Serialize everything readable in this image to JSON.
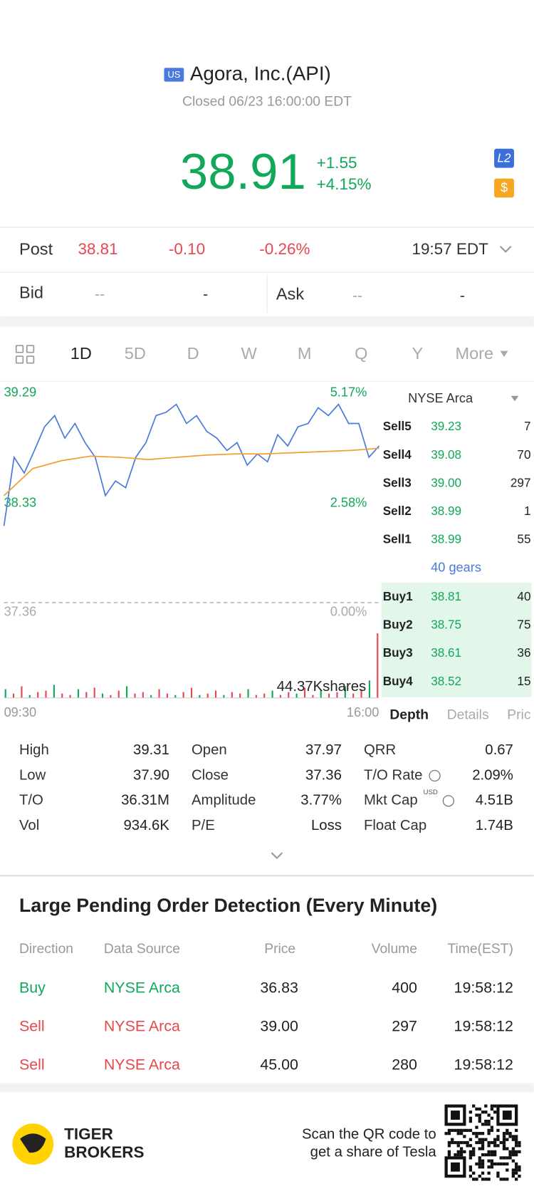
{
  "header": {
    "market_badge": "US",
    "name": "Agora, Inc.(API)",
    "status": "Closed 06/23 16:00:00 EDT",
    "price": "38.91",
    "change": "+1.55",
    "change_pct": "+4.15%",
    "badges": [
      "L2",
      "$"
    ]
  },
  "post": {
    "label": "Post",
    "price": "38.81",
    "change": "-0.10",
    "change_pct": "-0.26%",
    "time": "19:57 EDT"
  },
  "bid_ask": {
    "bid_label": "Bid",
    "bid": "--",
    "bid_size": "-",
    "ask_label": "Ask",
    "ask": "--",
    "ask_size": "-"
  },
  "tabs": [
    "1D",
    "5D",
    "D",
    "W",
    "M",
    "Q",
    "Y",
    "More"
  ],
  "chart_data": {
    "type": "line",
    "ylim": [
      37.36,
      39.29
    ],
    "yticks": [
      39.29,
      38.33,
      37.36
    ],
    "pct_labels": [
      "5.17%",
      "2.58%",
      "0.00%"
    ],
    "x_labels": [
      "09:30",
      "16:00"
    ],
    "series": [
      {
        "name": "Price",
        "color": "#4a7bdc",
        "values": [
          38.04,
          38.65,
          38.51,
          38.71,
          38.92,
          39.02,
          38.82,
          38.95,
          38.78,
          38.65,
          38.31,
          38.44,
          38.38,
          38.65,
          38.78,
          39.02,
          39.05,
          39.12,
          38.95,
          39.02,
          38.88,
          38.82,
          38.71,
          38.78,
          38.58,
          38.68,
          38.61,
          38.85,
          38.75,
          38.92,
          38.95,
          39.09,
          39.02,
          39.12,
          38.95,
          38.95,
          38.65,
          38.75
        ]
      },
      {
        "name": "Average",
        "color": "#f0a030",
        "values": [
          38.31,
          38.55,
          38.62,
          38.66,
          38.65,
          38.63,
          38.65,
          38.67,
          38.68,
          38.68,
          38.69,
          38.7,
          38.71,
          38.73
        ]
      }
    ],
    "volume": {
      "vlim": [
        0,
        55
      ],
      "max_label": "44.37Kshares",
      "color_up": "#e8474e",
      "color_down": "#12a85a",
      "values": [
        6,
        3,
        8,
        2,
        4,
        5,
        9,
        3,
        2,
        6,
        4,
        7,
        3,
        2,
        5,
        8,
        3,
        4,
        2,
        6,
        3,
        2,
        4,
        7,
        2,
        3,
        5,
        2,
        4,
        3,
        6,
        2,
        3,
        5,
        2,
        4,
        3,
        7,
        2,
        5,
        3,
        4,
        8,
        3,
        6,
        12,
        44.37
      ]
    }
  },
  "depth": {
    "exchange": "NYSE Arca",
    "sells": [
      [
        "Sell5",
        "39.23",
        "7"
      ],
      [
        "Sell4",
        "39.08",
        "70"
      ],
      [
        "Sell3",
        "39.00",
        "297"
      ],
      [
        "Sell2",
        "38.99",
        "1"
      ],
      [
        "Sell1",
        "38.99",
        "55"
      ]
    ],
    "gears": "40 gears",
    "buys": [
      [
        "Buy1",
        "38.81",
        "40"
      ],
      [
        "Buy2",
        "38.75",
        "75"
      ],
      [
        "Buy3",
        "38.61",
        "36"
      ],
      [
        "Buy4",
        "38.52",
        "15"
      ]
    ],
    "tabs": [
      "Depth",
      "Details",
      "Pric"
    ]
  },
  "stats": {
    "columns": [
      [
        [
          "High",
          "39.31"
        ],
        [
          "Low",
          "37.90"
        ],
        [
          "T/O",
          "36.31M"
        ],
        [
          "Vol",
          "934.6K"
        ]
      ],
      [
        [
          "Open",
          "37.97"
        ],
        [
          "Close",
          "37.36"
        ],
        [
          "Amplitude",
          "3.77%"
        ],
        [
          "P/E",
          "Loss"
        ]
      ],
      [
        [
          "QRR",
          "0.67"
        ],
        [
          "T/O Rate",
          "2.09%"
        ],
        [
          "Mkt Cap",
          "4.51B"
        ],
        [
          "Float Cap",
          "1.74B"
        ]
      ]
    ],
    "mkt_cap_unit": "USD"
  },
  "pending": {
    "title": "Large Pending Order Detection (Every Minute)",
    "headers": [
      "Direction",
      "Data Source",
      "Price",
      "Volume",
      "Time(EST)"
    ],
    "rows": [
      [
        "Buy",
        "NYSE Arca",
        "36.83",
        "400",
        "19:58:12"
      ],
      [
        "Sell",
        "NYSE Arca",
        "39.00",
        "297",
        "19:58:12"
      ],
      [
        "Sell",
        "NYSE Arca",
        "45.00",
        "280",
        "19:58:12"
      ]
    ]
  },
  "footer": {
    "brand": [
      "TIGER",
      "BROKERS"
    ],
    "promo": [
      "Scan the QR code to",
      "get a share of Tesla"
    ]
  }
}
